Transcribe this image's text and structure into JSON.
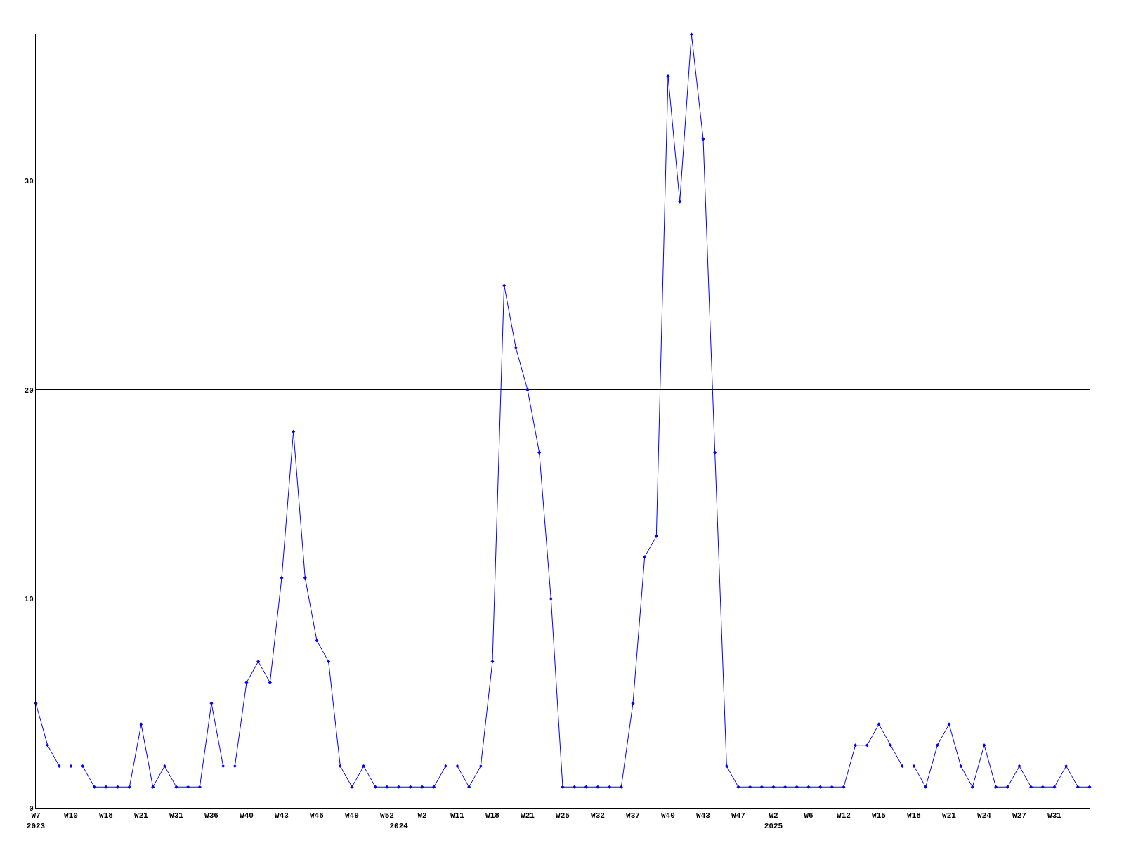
{
  "chart_data": {
    "type": "line",
    "categories": [
      "W7\n2023",
      null,
      null,
      "W10",
      null,
      null,
      "W18",
      null,
      null,
      "W21",
      null,
      null,
      "W31",
      null,
      null,
      "W36",
      null,
      null,
      "W40",
      null,
      null,
      "W43",
      null,
      null,
      "W46",
      null,
      null,
      "W49",
      null,
      null,
      "W52",
      "\n2024",
      null,
      "W2",
      null,
      null,
      "W11",
      null,
      null,
      "W18",
      null,
      null,
      "W21",
      null,
      null,
      "W25",
      null,
      null,
      "W32",
      null,
      null,
      "W37",
      null,
      null,
      "W40",
      null,
      null,
      "W43",
      null,
      null,
      "W47",
      null,
      null,
      "W2\n2025",
      null,
      null,
      "W6",
      null,
      null,
      "W12",
      null,
      null,
      "W15",
      null,
      null,
      "W18",
      null,
      null,
      "W21",
      null,
      null,
      "W24",
      null,
      null,
      "W27",
      null,
      null,
      "W31",
      null,
      null,
      null
    ],
    "series": [
      {
        "color": "#0000ff",
        "values": [
          5,
          3,
          2,
          2,
          2,
          1,
          1,
          1,
          1,
          4,
          1,
          2,
          1,
          1,
          1,
          5,
          2,
          2,
          6,
          7,
          6,
          11,
          18,
          11,
          8,
          7,
          2,
          1,
          2,
          1,
          1,
          1,
          1,
          1,
          1,
          2,
          2,
          1,
          2,
          7,
          25,
          22,
          20,
          17,
          10,
          1,
          1,
          1,
          1,
          1,
          1,
          5,
          12,
          13,
          35,
          29,
          37,
          32,
          17,
          2,
          1,
          1,
          1,
          1,
          1,
          1,
          1,
          1,
          1,
          1,
          3,
          3,
          4,
          3,
          2,
          2,
          1,
          3,
          4,
          2,
          1,
          3,
          1,
          1,
          2,
          1,
          1,
          1,
          2,
          1,
          1
        ]
      }
    ],
    "ylim": [
      0,
      37
    ],
    "yticks": [
      0,
      10,
      20,
      30
    ],
    "grid": "y",
    "marker": "diamond",
    "line_style": "solid",
    "legend": false
  }
}
